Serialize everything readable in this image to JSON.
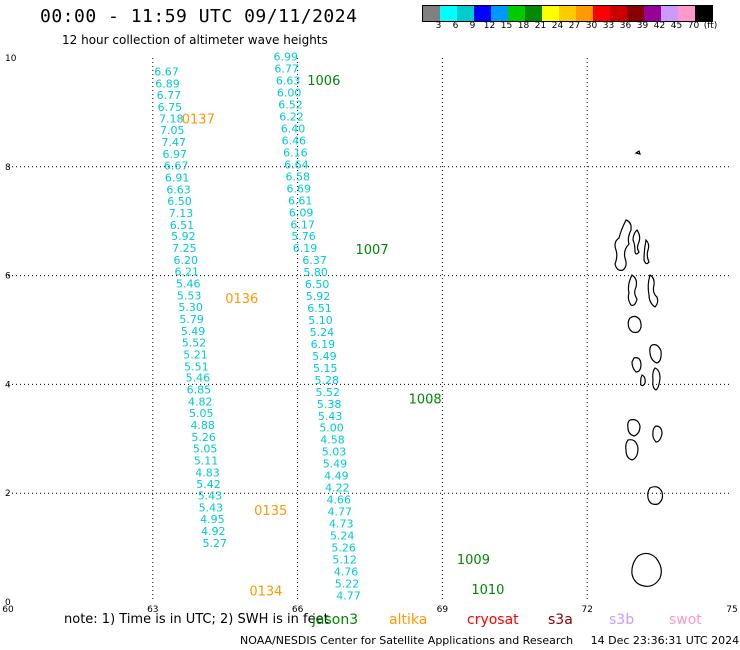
{
  "header": {
    "title": "00:00 - 11:59 UTC 09/11/2024",
    "subtitle": "12 hour collection of altimeter wave heights"
  },
  "legend": {
    "colors": [
      "#808080",
      "#00ffff",
      "#00cccc",
      "#0000ff",
      "#0099ff",
      "#00cc00",
      "#008800",
      "#ffff00",
      "#ffcc00",
      "#ff9900",
      "#ff0000",
      "#cc0000",
      "#880000",
      "#990099",
      "#cc99ff",
      "#ff99cc",
      "#000000"
    ],
    "labels": [
      "3",
      "6",
      "9",
      "12",
      "15",
      "18",
      "21",
      "24",
      "27",
      "30",
      "33",
      "36",
      "39",
      "42",
      "45",
      "70",
      "(ft)"
    ]
  },
  "colors": {
    "value": "#00cccc",
    "track_label_orange": "#ff9900",
    "track_label_green": "#008800",
    "grid": "#000000"
  },
  "note": {
    "text": "note: 1) Time is in UTC; 2) SWH is in feet"
  },
  "satellites": [
    {
      "name": "jason3",
      "color": "#008800"
    },
    {
      "name": "altika",
      "color": "#ff9900"
    },
    {
      "name": "cryosat",
      "color": "#ff0000"
    },
    {
      "name": "s3a",
      "color": "#880000"
    },
    {
      "name": "s3b",
      "color": "#cc99ff"
    },
    {
      "name": "swot",
      "color": "#ff99cc"
    }
  ],
  "footer": {
    "credit": "NOAA/NESDIS Center for Satellite Applications and Research",
    "timestamp": "14 Dec 23:36:31 UTC 2024"
  },
  "chart_data": {
    "type": "scatter",
    "title": "12 hour collection of altimeter wave heights",
    "xlabel": "",
    "ylabel": "",
    "xlim": [
      60,
      75
    ],
    "ylim": [
      0,
      10
    ],
    "x_ticks": [
      "60",
      "63",
      "66",
      "69",
      "72",
      "75"
    ],
    "y_ticks": [
      "0",
      "2",
      "4",
      "6",
      "8",
      "10"
    ],
    "grid": true,
    "series": [
      {
        "name": "",
        "color": "#00cccc",
        "points": [
          {
            "x": 63.03,
            "y": 9.68,
            "v": "6.67"
          },
          {
            "x": 63.05,
            "y": 9.46,
            "v": "6.89"
          },
          {
            "x": 63.08,
            "y": 9.25,
            "v": "6.77"
          },
          {
            "x": 63.1,
            "y": 9.03,
            "v": "6.75"
          },
          {
            "x": 63.13,
            "y": 8.81,
            "v": "7.18"
          },
          {
            "x": 63.15,
            "y": 8.6,
            "v": "7.05"
          },
          {
            "x": 63.18,
            "y": 8.38,
            "v": "7.47"
          },
          {
            "x": 63.2,
            "y": 8.16,
            "v": "6.97"
          },
          {
            "x": 63.23,
            "y": 7.95,
            "v": "6.67"
          },
          {
            "x": 63.25,
            "y": 7.73,
            "v": "6.91"
          },
          {
            "x": 63.28,
            "y": 7.51,
            "v": "6.63"
          },
          {
            "x": 63.3,
            "y": 7.3,
            "v": "6.50"
          },
          {
            "x": 63.33,
            "y": 7.08,
            "v": "7.13"
          },
          {
            "x": 63.35,
            "y": 6.86,
            "v": "6.51"
          },
          {
            "x": 63.38,
            "y": 6.65,
            "v": "5.92"
          },
          {
            "x": 63.4,
            "y": 6.43,
            "v": "7.25"
          },
          {
            "x": 63.43,
            "y": 6.21,
            "v": "6.20"
          },
          {
            "x": 63.45,
            "y": 6.0,
            "v": "6.21"
          },
          {
            "x": 63.48,
            "y": 5.78,
            "v": "5.46"
          },
          {
            "x": 63.5,
            "y": 5.56,
            "v": "5.53"
          },
          {
            "x": 63.53,
            "y": 5.35,
            "v": "5.30"
          },
          {
            "x": 63.55,
            "y": 5.13,
            "v": "5.79"
          },
          {
            "x": 63.58,
            "y": 4.91,
            "v": "5.49"
          },
          {
            "x": 63.6,
            "y": 4.7,
            "v": "5.52"
          },
          {
            "x": 63.63,
            "y": 4.48,
            "v": "5.21"
          },
          {
            "x": 63.65,
            "y": 4.26,
            "v": "5.51"
          },
          {
            "x": 63.68,
            "y": 4.05,
            "v": "5.46"
          },
          {
            "x": 63.7,
            "y": 3.83,
            "v": "6.85"
          },
          {
            "x": 63.73,
            "y": 3.61,
            "v": "4.82"
          },
          {
            "x": 63.75,
            "y": 3.4,
            "v": "5.05"
          },
          {
            "x": 63.78,
            "y": 3.18,
            "v": "4.88"
          },
          {
            "x": 63.8,
            "y": 2.96,
            "v": "5.26"
          },
          {
            "x": 63.83,
            "y": 2.75,
            "v": "5.05"
          },
          {
            "x": 63.85,
            "y": 2.53,
            "v": "5.11"
          },
          {
            "x": 63.88,
            "y": 2.31,
            "v": "4.83"
          },
          {
            "x": 63.9,
            "y": 2.1,
            "v": "5.42"
          },
          {
            "x": 63.93,
            "y": 1.88,
            "v": "5.43"
          },
          {
            "x": 63.95,
            "y": 1.66,
            "v": "5.43"
          },
          {
            "x": 63.98,
            "y": 1.45,
            "v": "4.95"
          },
          {
            "x": 64.0,
            "y": 1.23,
            "v": "4.92"
          },
          {
            "x": 64.03,
            "y": 1.01,
            "v": "5.27"
          }
        ]
      },
      {
        "name": "",
        "color": "#00cccc",
        "points": [
          {
            "x": 65.5,
            "y": 9.95,
            "v": "6.99"
          },
          {
            "x": 65.52,
            "y": 9.73,
            "v": "6.77"
          },
          {
            "x": 65.55,
            "y": 9.51,
            "v": "6.63"
          },
          {
            "x": 65.57,
            "y": 9.29,
            "v": "6.00"
          },
          {
            "x": 65.6,
            "y": 9.07,
            "v": "6.52"
          },
          {
            "x": 65.62,
            "y": 8.85,
            "v": "6.22"
          },
          {
            "x": 65.65,
            "y": 8.63,
            "v": "6.40"
          },
          {
            "x": 65.67,
            "y": 8.41,
            "v": "6.46"
          },
          {
            "x": 65.7,
            "y": 8.19,
            "v": "6.16"
          },
          {
            "x": 65.72,
            "y": 7.97,
            "v": "6.64"
          },
          {
            "x": 65.75,
            "y": 7.75,
            "v": "6.58"
          },
          {
            "x": 65.77,
            "y": 7.53,
            "v": "6.69"
          },
          {
            "x": 65.8,
            "y": 7.31,
            "v": "6.61"
          },
          {
            "x": 65.82,
            "y": 7.09,
            "v": "6.09"
          },
          {
            "x": 65.85,
            "y": 6.87,
            "v": "6.17"
          },
          {
            "x": 65.87,
            "y": 6.65,
            "v": "5.76"
          },
          {
            "x": 65.9,
            "y": 6.43,
            "v": "6.19"
          },
          {
            "x": 66.1,
            "y": 6.21,
            "v": "6.37"
          },
          {
            "x": 66.12,
            "y": 5.99,
            "v": "5.80"
          },
          {
            "x": 66.15,
            "y": 5.77,
            "v": "6.50"
          },
          {
            "x": 66.17,
            "y": 5.55,
            "v": "5.92"
          },
          {
            "x": 66.2,
            "y": 5.33,
            "v": "6.51"
          },
          {
            "x": 66.22,
            "y": 5.11,
            "v": "5.10"
          },
          {
            "x": 66.25,
            "y": 4.89,
            "v": "5.24"
          },
          {
            "x": 66.27,
            "y": 4.67,
            "v": "6.19"
          },
          {
            "x": 66.3,
            "y": 4.45,
            "v": "5.49"
          },
          {
            "x": 66.32,
            "y": 4.23,
            "v": "5.15"
          },
          {
            "x": 66.35,
            "y": 4.01,
            "v": "5.28"
          },
          {
            "x": 66.37,
            "y": 3.79,
            "v": "5.52"
          },
          {
            "x": 66.4,
            "y": 3.57,
            "v": "5.38"
          },
          {
            "x": 66.42,
            "y": 3.35,
            "v": "5.43"
          },
          {
            "x": 66.45,
            "y": 3.13,
            "v": "5.00"
          },
          {
            "x": 66.47,
            "y": 2.91,
            "v": "4.58"
          },
          {
            "x": 66.5,
            "y": 2.69,
            "v": "5.03"
          },
          {
            "x": 66.52,
            "y": 2.47,
            "v": "5.49"
          },
          {
            "x": 66.55,
            "y": 2.25,
            "v": "4.49"
          },
          {
            "x": 66.57,
            "y": 2.03,
            "v": "4.22"
          },
          {
            "x": 66.6,
            "y": 1.81,
            "v": "4.66"
          },
          {
            "x": 66.62,
            "y": 1.59,
            "v": "4.77"
          },
          {
            "x": 66.65,
            "y": 1.37,
            "v": "4.73"
          },
          {
            "x": 66.67,
            "y": 1.15,
            "v": "5.24"
          },
          {
            "x": 66.7,
            "y": 0.93,
            "v": "5.26"
          },
          {
            "x": 66.72,
            "y": 0.71,
            "v": "5.12"
          },
          {
            "x": 66.75,
            "y": 0.49,
            "v": "4.76"
          },
          {
            "x": 66.77,
            "y": 0.27,
            "v": "5.22"
          },
          {
            "x": 66.8,
            "y": 0.05,
            "v": "4.77"
          }
        ]
      }
    ],
    "annotations": [
      {
        "text": "1006",
        "x": 66.2,
        "y": 9.5,
        "color": "#008800"
      },
      {
        "text": "0137",
        "x": 63.6,
        "y": 8.8,
        "color": "#ff9900"
      },
      {
        "text": "1007",
        "x": 67.2,
        "y": 6.4,
        "color": "#008800"
      },
      {
        "text": "0136",
        "x": 64.5,
        "y": 5.5,
        "color": "#ff9900"
      },
      {
        "text": "1008",
        "x": 68.3,
        "y": 3.65,
        "color": "#008800"
      },
      {
        "text": "0135",
        "x": 65.1,
        "y": 1.6,
        "color": "#ff9900"
      },
      {
        "text": "1009",
        "x": 69.3,
        "y": 0.7,
        "color": "#008800"
      },
      {
        "text": "0134",
        "x": 65.0,
        "y": 0.12,
        "color": "#ff9900"
      },
      {
        "text": "1010",
        "x": 69.6,
        "y": 0.15,
        "color": "#008800"
      }
    ]
  }
}
